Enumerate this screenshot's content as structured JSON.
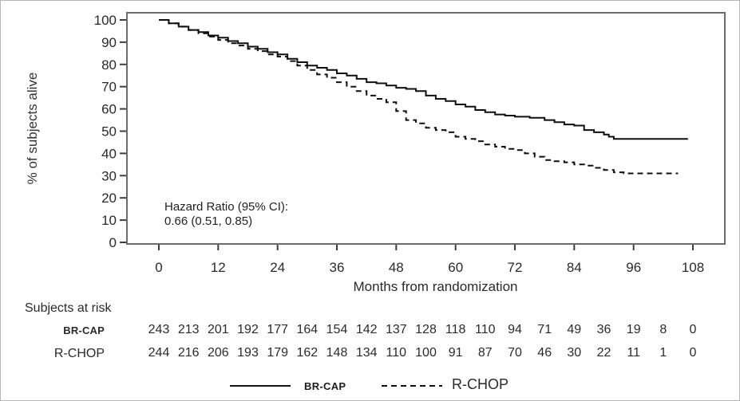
{
  "chart_data": {
    "type": "line",
    "subtype": "kaplan_meier_step",
    "title": "",
    "xlabel": "Months from randomization",
    "ylabel": "% of subjects alive",
    "xlim": [
      0,
      108
    ],
    "ylim": [
      0,
      100
    ],
    "xticks": [
      0,
      12,
      24,
      36,
      48,
      60,
      72,
      84,
      96,
      108
    ],
    "yticks": [
      0,
      10,
      20,
      30,
      40,
      50,
      60,
      70,
      80,
      90,
      100
    ],
    "grid": false,
    "annotation": {
      "lines": [
        "Hazard Ratio (95% CI):",
        "0.66 (0.51, 0.85)"
      ]
    },
    "colors": {
      "line": "#0f0f0f",
      "frame": "#6b6b6b",
      "tick": "#3d3d3d",
      "text": "#2a2a2a"
    },
    "series": [
      {
        "name": "BR-CAP",
        "line": "solid",
        "points": [
          [
            0,
            100
          ],
          [
            2,
            98.5
          ],
          [
            4,
            97
          ],
          [
            6,
            95.5
          ],
          [
            8,
            94.5
          ],
          [
            10,
            93
          ],
          [
            12,
            92
          ],
          [
            14,
            90.5
          ],
          [
            16,
            89.5
          ],
          [
            18,
            88
          ],
          [
            20,
            87
          ],
          [
            22,
            85.5
          ],
          [
            24,
            84.5
          ],
          [
            26,
            82.5
          ],
          [
            28,
            81
          ],
          [
            30,
            79.5
          ],
          [
            32,
            78.5
          ],
          [
            34,
            77.5
          ],
          [
            36,
            76
          ],
          [
            38,
            75
          ],
          [
            40,
            73.5
          ],
          [
            42,
            72
          ],
          [
            44,
            71.5
          ],
          [
            46,
            70.5
          ],
          [
            48,
            69.5
          ],
          [
            50,
            69
          ],
          [
            52,
            68
          ],
          [
            54,
            66
          ],
          [
            56,
            64.5
          ],
          [
            58,
            63.5
          ],
          [
            60,
            62
          ],
          [
            62,
            61
          ],
          [
            64,
            59.5
          ],
          [
            66,
            58.5
          ],
          [
            68,
            57.5
          ],
          [
            70,
            57
          ],
          [
            72,
            56.5
          ],
          [
            75,
            56
          ],
          [
            78,
            55
          ],
          [
            80,
            54
          ],
          [
            82,
            53
          ],
          [
            84,
            52.5
          ],
          [
            86,
            50.5
          ],
          [
            88,
            49.5
          ],
          [
            90,
            48.5
          ],
          [
            91,
            47.5
          ],
          [
            92,
            46.5
          ],
          [
            107,
            46.5
          ]
        ]
      },
      {
        "name": "R-CHOP",
        "line": "dashed",
        "points": [
          [
            0,
            100
          ],
          [
            2,
            98.5
          ],
          [
            4,
            97
          ],
          [
            6,
            95.5
          ],
          [
            8,
            94
          ],
          [
            10,
            92.5
          ],
          [
            12,
            91
          ],
          [
            14,
            89.5
          ],
          [
            16,
            88.5
          ],
          [
            18,
            87
          ],
          [
            20,
            86
          ],
          [
            22,
            84.5
          ],
          [
            24,
            83.5
          ],
          [
            26,
            81.5
          ],
          [
            28,
            79.5
          ],
          [
            30,
            77.5
          ],
          [
            32,
            75.5
          ],
          [
            34,
            74
          ],
          [
            36,
            72
          ],
          [
            38,
            70
          ],
          [
            40,
            68
          ],
          [
            42,
            66
          ],
          [
            44,
            64.5
          ],
          [
            46,
            63
          ],
          [
            48,
            59
          ],
          [
            50,
            55
          ],
          [
            52,
            53.5
          ],
          [
            54,
            51.5
          ],
          [
            56,
            50.5
          ],
          [
            58,
            49.5
          ],
          [
            60,
            47.5
          ],
          [
            62,
            46.5
          ],
          [
            64,
            45.5
          ],
          [
            66,
            44
          ],
          [
            68,
            43
          ],
          [
            70,
            42
          ],
          [
            72,
            41.5
          ],
          [
            74,
            40
          ],
          [
            76,
            38.5
          ],
          [
            78,
            37
          ],
          [
            80,
            36.5
          ],
          [
            82,
            36
          ],
          [
            84,
            35
          ],
          [
            86,
            34.5
          ],
          [
            88,
            33.5
          ],
          [
            90,
            32.5
          ],
          [
            92,
            31.5
          ],
          [
            94,
            31
          ],
          [
            105,
            31
          ]
        ]
      }
    ],
    "at_risk": {
      "header": "Subjects at risk",
      "months": [
        0,
        6,
        12,
        18,
        24,
        30,
        36,
        42,
        48,
        54,
        60,
        66,
        72,
        78,
        84,
        90,
        96,
        102,
        108
      ],
      "rows": [
        {
          "label": "BR-CAP",
          "counts": [
            243,
            213,
            201,
            192,
            177,
            164,
            154,
            142,
            137,
            128,
            118,
            110,
            94,
            71,
            49,
            36,
            19,
            8,
            0
          ]
        },
        {
          "label": "R-CHOP",
          "counts": [
            244,
            216,
            206,
            193,
            179,
            162,
            148,
            134,
            110,
            100,
            91,
            87,
            70,
            46,
            30,
            22,
            11,
            1,
            0
          ]
        }
      ]
    },
    "legend": {
      "position": "bottom",
      "items": [
        {
          "label": "BR-CAP",
          "line": "solid"
        },
        {
          "label": "R-CHOP",
          "line": "dashed"
        }
      ]
    }
  }
}
